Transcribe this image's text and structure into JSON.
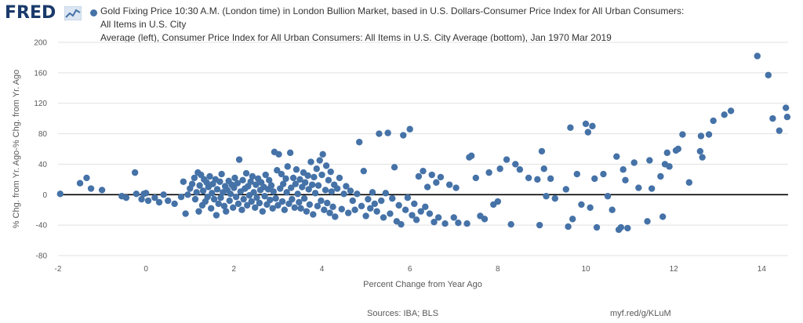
{
  "header": {
    "logo_text": "FRED",
    "title_line1": "Gold Fixing Price 10:30 A.M. (London time) in London Bullion Market, based in U.S. Dollars-Consumer Price Index for All Urban Consumers: All Items in U.S. City",
    "title_line2": "Average (left), Consumer Price Index for All Urban Consumers: All Items in U.S. City Average (bottom), Jan 1970 Mar 2019"
  },
  "footer": {
    "source": "Sources: IBA; BLS",
    "url": "myf.red/g/KLuM"
  },
  "colors": {
    "series": "#4572a7",
    "grid": "#e1e1e1",
    "zero_line": "#000000",
    "logo": "#1a3a6b"
  },
  "chart_data": {
    "type": "scatter",
    "title": "Gold Fixing Price 10:30 A.M. (London time) in London Bullion Market, based in U.S. Dollars-Consumer Price Index for All Urban Consumers: All Items in U.S. City Average (left), Consumer Price Index for All Urban Consumers: All Items in U.S. City Average (bottom), Jan 1970 Mar 2019",
    "xlabel": "Percent Change from Year Ago",
    "ylabel": "% Chg. from Yr. Ago-% Chg. from Yr. Ago",
    "xlim": [
      -2,
      14.6
    ],
    "ylim": [
      -80,
      200
    ],
    "x_ticks": [
      "-2",
      "0",
      "2",
      "4",
      "6",
      "8",
      "10",
      "12",
      "14"
    ],
    "y_ticks": [
      "200",
      "160",
      "120",
      "80",
      "40",
      "0",
      "-40",
      "-80"
    ],
    "grid": true,
    "zero_line": true,
    "legend": "top-left",
    "points": [
      [
        -1.95,
        1
      ],
      [
        -1.5,
        15
      ],
      [
        -1.35,
        22
      ],
      [
        -1.25,
        8
      ],
      [
        -1.0,
        6
      ],
      [
        -0.55,
        -2
      ],
      [
        -0.45,
        -4
      ],
      [
        -0.25,
        29
      ],
      [
        -0.22,
        1
      ],
      [
        -0.1,
        -6
      ],
      [
        -0.05,
        1
      ],
      [
        0.0,
        2
      ],
      [
        0.05,
        -8
      ],
      [
        0.2,
        -4
      ],
      [
        0.3,
        -10
      ],
      [
        0.4,
        0
      ],
      [
        0.5,
        -8
      ],
      [
        0.65,
        -12
      ],
      [
        0.8,
        -3
      ],
      [
        0.85,
        17
      ],
      [
        0.9,
        -25
      ],
      [
        0.95,
        0
      ],
      [
        1.0,
        8
      ],
      [
        1.05,
        14
      ],
      [
        1.1,
        22
      ],
      [
        1.12,
        -6
      ],
      [
        1.15,
        3
      ],
      [
        1.18,
        29
      ],
      [
        1.2,
        -22
      ],
      [
        1.22,
        12
      ],
      [
        1.25,
        26
      ],
      [
        1.28,
        -14
      ],
      [
        1.3,
        5
      ],
      [
        1.32,
        20
      ],
      [
        1.35,
        -9
      ],
      [
        1.38,
        16
      ],
      [
        1.4,
        -3
      ],
      [
        1.42,
        10
      ],
      [
        1.45,
        24
      ],
      [
        1.48,
        -18
      ],
      [
        1.5,
        2
      ],
      [
        1.52,
        14
      ],
      [
        1.55,
        -6
      ],
      [
        1.58,
        20
      ],
      [
        1.6,
        -27
      ],
      [
        1.62,
        7
      ],
      [
        1.65,
        -12
      ],
      [
        1.68,
        17
      ],
      [
        1.7,
        -4
      ],
      [
        1.72,
        27
      ],
      [
        1.75,
        3
      ],
      [
        1.78,
        -15
      ],
      [
        1.8,
        11
      ],
      [
        1.82,
        -22
      ],
      [
        1.85,
        6
      ],
      [
        1.88,
        18
      ],
      [
        1.9,
        -8
      ],
      [
        1.92,
        1
      ],
      [
        1.95,
        13
      ],
      [
        1.98,
        -17
      ],
      [
        2.0,
        9
      ],
      [
        2.02,
        22
      ],
      [
        2.05,
        -3
      ],
      [
        2.08,
        15
      ],
      [
        2.1,
        -12
      ],
      [
        2.12,
        46
      ],
      [
        2.15,
        4
      ],
      [
        2.18,
        -20
      ],
      [
        2.2,
        19
      ],
      [
        2.22,
        -6
      ],
      [
        2.25,
        8
      ],
      [
        2.28,
        28
      ],
      [
        2.3,
        -14
      ],
      [
        2.32,
        11
      ],
      [
        2.35,
        -1
      ],
      [
        2.38,
        17
      ],
      [
        2.4,
        -9
      ],
      [
        2.42,
        24
      ],
      [
        2.45,
        3
      ],
      [
        2.48,
        -17
      ],
      [
        2.5,
        13
      ],
      [
        2.52,
        -4
      ],
      [
        2.55,
        21
      ],
      [
        2.58,
        -11
      ],
      [
        2.6,
        6
      ],
      [
        2.62,
        16
      ],
      [
        2.65,
        -22
      ],
      [
        2.68,
        10
      ],
      [
        2.7,
        -2
      ],
      [
        2.72,
        26
      ],
      [
        2.75,
        -13
      ],
      [
        2.78,
        7
      ],
      [
        2.8,
        19
      ],
      [
        2.82,
        -7
      ],
      [
        2.85,
        12
      ],
      [
        2.88,
        -18
      ],
      [
        2.9,
        4
      ],
      [
        2.92,
        56
      ],
      [
        2.95,
        -5
      ],
      [
        2.98,
        32
      ],
      [
        3.0,
        -14
      ],
      [
        3.02,
        53
      ],
      [
        3.05,
        8
      ],
      [
        3.08,
        27
      ],
      [
        3.1,
        -9
      ],
      [
        3.12,
        14
      ],
      [
        3.15,
        -20
      ],
      [
        3.18,
        21
      ],
      [
        3.2,
        3
      ],
      [
        3.22,
        37
      ],
      [
        3.25,
        -12
      ],
      [
        3.28,
        55
      ],
      [
        3.3,
        9
      ],
      [
        3.32,
        -6
      ],
      [
        3.35,
        22
      ],
      [
        3.38,
        -17
      ],
      [
        3.4,
        14
      ],
      [
        3.42,
        33
      ],
      [
        3.45,
        1
      ],
      [
        3.48,
        -10
      ],
      [
        3.5,
        20
      ],
      [
        3.52,
        -18
      ],
      [
        3.55,
        10
      ],
      [
        3.58,
        29
      ],
      [
        3.6,
        -5
      ],
      [
        3.62,
        16
      ],
      [
        3.65,
        -22
      ],
      [
        3.68,
        25
      ],
      [
        3.7,
        7
      ],
      [
        3.72,
        -13
      ],
      [
        3.75,
        43
      ],
      [
        3.78,
        13
      ],
      [
        3.8,
        -26
      ],
      [
        3.82,
        23
      ],
      [
        3.85,
        2
      ],
      [
        3.88,
        34
      ],
      [
        3.9,
        -15
      ],
      [
        3.92,
        12
      ],
      [
        3.95,
        45
      ],
      [
        3.98,
        -8
      ],
      [
        4.0,
        26
      ],
      [
        4.02,
        53
      ],
      [
        4.05,
        -20
      ],
      [
        4.08,
        6
      ],
      [
        4.1,
        38
      ],
      [
        4.12,
        -11
      ],
      [
        4.15,
        19
      ],
      [
        4.18,
        -24
      ],
      [
        4.2,
        30
      ],
      [
        4.22,
        4
      ],
      [
        4.25,
        -16
      ],
      [
        4.28,
        13
      ],
      [
        4.3,
        -29
      ],
      [
        4.35,
        8
      ],
      [
        4.4,
        22
      ],
      [
        4.45,
        -19
      ],
      [
        4.5,
        1
      ],
      [
        4.55,
        11
      ],
      [
        4.6,
        -24
      ],
      [
        4.65,
        5
      ],
      [
        4.7,
        -8
      ],
      [
        4.75,
        -20
      ],
      [
        4.8,
        1
      ],
      [
        4.85,
        69
      ],
      [
        4.9,
        -15
      ],
      [
        4.95,
        31
      ],
      [
        5.0,
        -28
      ],
      [
        5.05,
        -6
      ],
      [
        5.1,
        -18
      ],
      [
        5.15,
        3
      ],
      [
        5.2,
        -12
      ],
      [
        5.25,
        -22
      ],
      [
        5.3,
        80
      ],
      [
        5.35,
        -8
      ],
      [
        5.4,
        -30
      ],
      [
        5.45,
        2
      ],
      [
        5.5,
        81
      ],
      [
        5.55,
        -25
      ],
      [
        5.6,
        -5
      ],
      [
        5.65,
        36
      ],
      [
        5.7,
        -35
      ],
      [
        5.75,
        -14
      ],
      [
        5.8,
        -39
      ],
      [
        5.85,
        78
      ],
      [
        5.9,
        -20
      ],
      [
        5.95,
        -4
      ],
      [
        6.0,
        86
      ],
      [
        6.05,
        -27
      ],
      [
        6.1,
        -12
      ],
      [
        6.15,
        -33
      ],
      [
        6.2,
        24
      ],
      [
        6.25,
        -22
      ],
      [
        6.3,
        31
      ],
      [
        6.35,
        -16
      ],
      [
        6.4,
        10
      ],
      [
        6.45,
        -25
      ],
      [
        6.5,
        26
      ],
      [
        6.55,
        -36
      ],
      [
        6.6,
        16
      ],
      [
        6.65,
        -30
      ],
      [
        6.7,
        23
      ],
      [
        6.8,
        -38
      ],
      [
        6.9,
        13
      ],
      [
        7.0,
        -30
      ],
      [
        7.05,
        9
      ],
      [
        7.1,
        -37
      ],
      [
        7.3,
        -38
      ],
      [
        7.35,
        49
      ],
      [
        7.4,
        51
      ],
      [
        7.5,
        22
      ],
      [
        7.6,
        -28
      ],
      [
        7.7,
        -32
      ],
      [
        7.8,
        29
      ],
      [
        7.9,
        -13
      ],
      [
        8.0,
        -9
      ],
      [
        8.05,
        34
      ],
      [
        8.2,
        46
      ],
      [
        8.3,
        -39
      ],
      [
        8.4,
        40
      ],
      [
        8.5,
        33
      ],
      [
        8.7,
        22
      ],
      [
        8.9,
        20
      ],
      [
        8.95,
        -40
      ],
      [
        9.0,
        57
      ],
      [
        9.05,
        34
      ],
      [
        9.1,
        -2
      ],
      [
        9.2,
        21
      ],
      [
        9.3,
        -5
      ],
      [
        9.55,
        7
      ],
      [
        9.6,
        -42
      ],
      [
        9.65,
        88
      ],
      [
        9.7,
        -32
      ],
      [
        9.8,
        27
      ],
      [
        9.9,
        -13
      ],
      [
        10.0,
        93
      ],
      [
        10.05,
        82
      ],
      [
        10.1,
        -17
      ],
      [
        10.15,
        90
      ],
      [
        10.2,
        21
      ],
      [
        10.25,
        -43
      ],
      [
        10.4,
        27
      ],
      [
        10.5,
        -2
      ],
      [
        10.6,
        -20
      ],
      [
        10.7,
        50
      ],
      [
        10.75,
        -46
      ],
      [
        10.8,
        -43
      ],
      [
        10.85,
        33
      ],
      [
        10.9,
        19
      ],
      [
        10.95,
        -44
      ],
      [
        11.1,
        42
      ],
      [
        11.2,
        9
      ],
      [
        11.4,
        -35
      ],
      [
        11.45,
        45
      ],
      [
        11.5,
        8
      ],
      [
        11.7,
        24
      ],
      [
        11.75,
        -29
      ],
      [
        11.8,
        40
      ],
      [
        11.85,
        55
      ],
      [
        11.9,
        37
      ],
      [
        12.05,
        58
      ],
      [
        12.1,
        60
      ],
      [
        12.2,
        79
      ],
      [
        12.35,
        16
      ],
      [
        12.6,
        57
      ],
      [
        12.62,
        77
      ],
      [
        12.65,
        49
      ],
      [
        12.8,
        79
      ],
      [
        12.9,
        97
      ],
      [
        13.15,
        105
      ],
      [
        13.3,
        110
      ],
      [
        13.9,
        182
      ],
      [
        14.15,
        157
      ],
      [
        14.25,
        100
      ],
      [
        14.4,
        84
      ],
      [
        14.55,
        114
      ],
      [
        14.58,
        102
      ]
    ]
  }
}
